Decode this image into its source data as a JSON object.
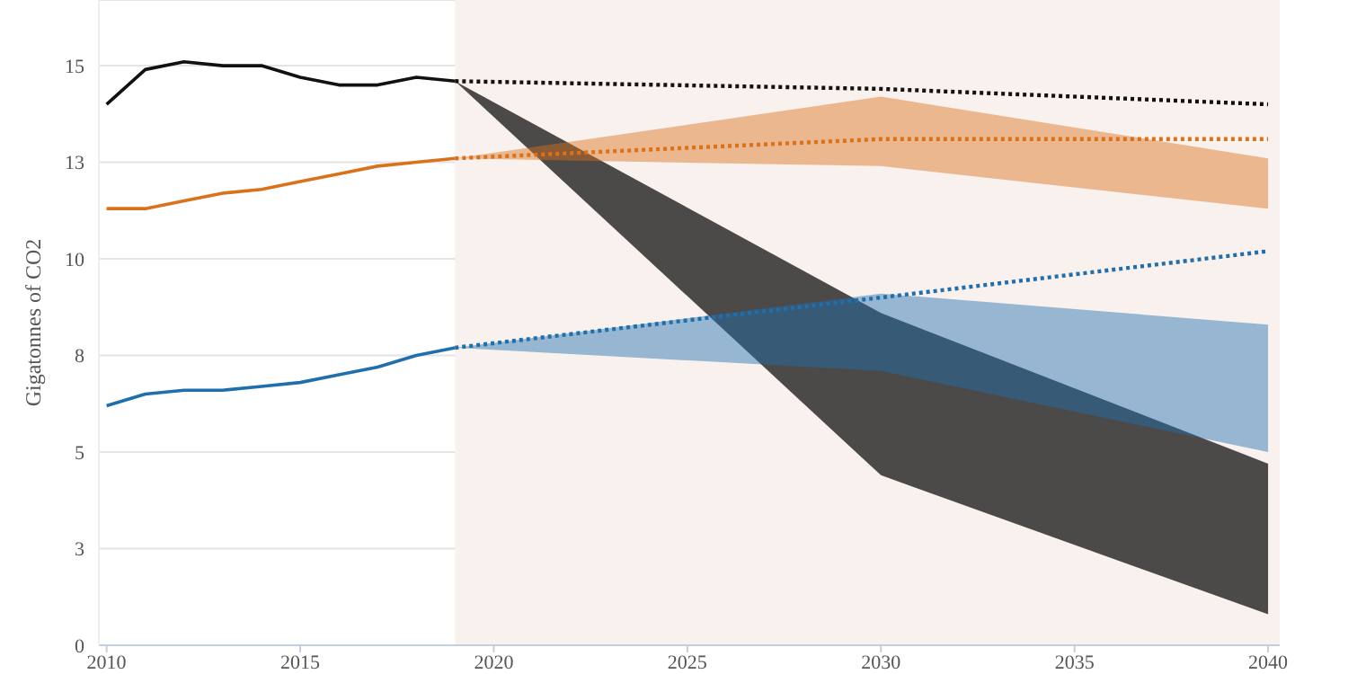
{
  "chart_data": {
    "type": "line",
    "ylabel": "Gigatonnes of CO2",
    "xlim": [
      2009.8,
      2040.3
    ],
    "xticks": [
      2010,
      2015,
      2020,
      2025,
      2030,
      2035,
      2040
    ],
    "ylim": [
      0,
      16.7
    ],
    "yticks": [
      0,
      {
        "value": 2.5,
        "label": "3"
      },
      5,
      {
        "value": 7.5,
        "label": "8"
      },
      10,
      {
        "value": 12.5,
        "label": "13"
      },
      15
    ],
    "grid": "y",
    "bands": [
      {
        "axis": "x",
        "from": 2019,
        "to": 2040.3,
        "color": "#f9f1ee"
      }
    ],
    "series": [
      {
        "color": "#111111",
        "line_style": "solid",
        "x": [
          2010,
          2011,
          2012,
          2013,
          2014,
          2015,
          2016,
          2017,
          2018,
          2019
        ],
        "values": [
          14.0,
          14.9,
          15.1,
          15.0,
          15.0,
          14.7,
          14.5,
          14.5,
          14.7,
          14.6
        ]
      },
      {
        "color": "#d9721a",
        "line_style": "solid",
        "x": [
          2010,
          2011,
          2012,
          2013,
          2014,
          2015,
          2016,
          2017,
          2018,
          2019
        ],
        "values": [
          11.3,
          11.3,
          11.5,
          11.7,
          11.8,
          12.0,
          12.2,
          12.4,
          12.5,
          12.6
        ]
      },
      {
        "color": "#1f6fad",
        "line_style": "solid",
        "x": [
          2010,
          2011,
          2012,
          2013,
          2014,
          2015,
          2016,
          2017,
          2018,
          2019
        ],
        "values": [
          6.2,
          6.5,
          6.6,
          6.6,
          6.7,
          6.8,
          7.0,
          7.2,
          7.5,
          7.7
        ]
      },
      {
        "color": "#111111",
        "line_style": "dotted",
        "x": [
          2019,
          2030,
          2040
        ],
        "values": [
          14.6,
          14.4,
          14.0
        ],
        "lower": [
          14.6,
          4.4,
          0.8
        ],
        "upper": [
          14.6,
          8.6,
          4.7
        ]
      },
      {
        "color": "#d9721a",
        "line_style": "dotted",
        "x": [
          2019,
          2030,
          2040
        ],
        "values": [
          12.6,
          13.1,
          13.1
        ],
        "lower": [
          12.6,
          12.4,
          11.3
        ],
        "upper": [
          12.6,
          14.2,
          12.6
        ]
      },
      {
        "color": "#1f6fad",
        "line_style": "dotted",
        "x": [
          2019,
          2030,
          2040
        ],
        "values": [
          7.7,
          9.0,
          10.2
        ],
        "lower": [
          7.7,
          7.1,
          5.0
        ],
        "upper": [
          7.7,
          9.1,
          8.3
        ]
      }
    ]
  }
}
